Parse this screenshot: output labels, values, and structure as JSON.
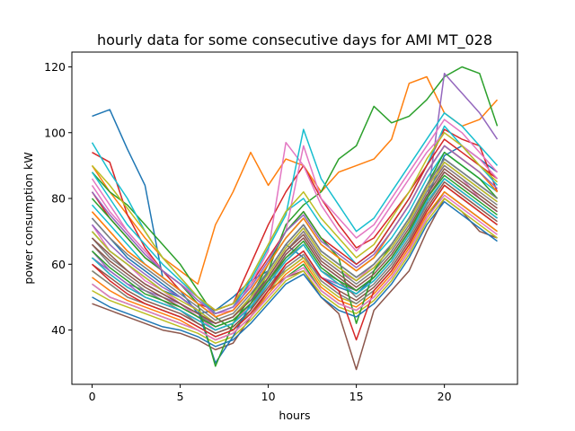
{
  "chart_data": {
    "type": "line",
    "title": "hourly data for some consecutive days for AMI MT_028",
    "xlabel": "hours",
    "ylabel": "power consumption kW",
    "xlim": [
      -1.15,
      24.15
    ],
    "ylim": [
      23.5,
      124.5
    ],
    "xticks": [
      0,
      5,
      10,
      15,
      20
    ],
    "yticks": [
      40,
      60,
      80,
      100,
      120
    ],
    "grid": false,
    "legend": "none",
    "x": [
      0,
      1,
      2,
      3,
      4,
      5,
      6,
      7,
      8,
      9,
      10,
      11,
      12,
      13,
      14,
      15,
      16,
      17,
      18,
      19,
      20,
      21,
      22,
      23
    ],
    "colors": [
      "#1f77b4",
      "#ff7f0e",
      "#2ca02c",
      "#d62728",
      "#9467bd",
      "#8c564b",
      "#e377c2",
      "#7f7f7f",
      "#bcbd22",
      "#17becf"
    ],
    "series": [
      {
        "values": [
          105,
          107,
          95,
          84,
          56,
          52,
          45,
          46,
          50,
          55,
          58,
          66,
          62,
          56,
          53,
          51,
          56,
          62,
          70,
          80,
          93,
          96,
          92,
          88
        ]
      },
      {
        "values": [
          90,
          82,
          75,
          68,
          62,
          58,
          54,
          72,
          82,
          94,
          84,
          92,
          90,
          82,
          88,
          90,
          92,
          98,
          115,
          117,
          106,
          102,
          104,
          110
        ]
      },
      {
        "values": [
          88,
          82,
          78,
          72,
          66,
          60,
          52,
          44,
          40,
          46,
          58,
          72,
          78,
          82,
          92,
          96,
          108,
          103,
          105,
          110,
          117,
          120,
          118,
          102
        ]
      },
      {
        "values": [
          94,
          91,
          75,
          65,
          58,
          52,
          48,
          46,
          48,
          60,
          72,
          82,
          90,
          80,
          72,
          65,
          68,
          75,
          82,
          90,
          101,
          98,
          96,
          82
        ]
      },
      {
        "values": [
          62,
          58,
          54,
          52,
          50,
          48,
          44,
          42,
          44,
          50,
          55,
          58,
          62,
          56,
          54,
          52,
          56,
          62,
          70,
          78,
          118,
          112,
          106,
          98
        ]
      },
      {
        "values": [
          48,
          46,
          44,
          42,
          40,
          39,
          37,
          34,
          36,
          44,
          52,
          56,
          58,
          50,
          45,
          28,
          46,
          52,
          58,
          70,
          80,
          76,
          70,
          68
        ]
      },
      {
        "values": [
          72,
          64,
          60,
          55,
          52,
          48,
          44,
          40,
          42,
          48,
          56,
          64,
          70,
          62,
          58,
          55,
          60,
          66,
          74,
          84,
          90,
          86,
          80,
          76
        ]
      },
      {
        "values": [
          66,
          60,
          56,
          52,
          49,
          46,
          42,
          39,
          41,
          46,
          54,
          62,
          66,
          58,
          55,
          50,
          54,
          60,
          68,
          78,
          86,
          82,
          78,
          74
        ]
      },
      {
        "values": [
          58,
          54,
          50,
          48,
          46,
          44,
          41,
          38,
          40,
          45,
          52,
          58,
          62,
          54,
          50,
          48,
          52,
          58,
          66,
          76,
          84,
          80,
          76,
          72
        ]
      },
      {
        "values": [
          97,
          88,
          80,
          70,
          62,
          56,
          50,
          46,
          48,
          56,
          66,
          76,
          80,
          72,
          66,
          60,
          64,
          72,
          80,
          90,
          102,
          96,
          90,
          84
        ]
      },
      {
        "values": [
          70,
          64,
          60,
          56,
          52,
          50,
          46,
          42,
          44,
          50,
          58,
          66,
          72,
          64,
          60,
          56,
          60,
          66,
          74,
          84,
          92,
          88,
          84,
          80
        ]
      },
      {
        "values": [
          76,
          70,
          64,
          60,
          56,
          52,
          48,
          44,
          46,
          52,
          60,
          68,
          74,
          66,
          62,
          58,
          62,
          70,
          78,
          88,
          96,
          92,
          88,
          82
        ]
      },
      {
        "values": [
          54,
          50,
          48,
          46,
          44,
          42,
          40,
          37,
          39,
          44,
          50,
          56,
          60,
          52,
          48,
          46,
          50,
          56,
          64,
          74,
          82,
          78,
          74,
          70
        ]
      },
      {
        "values": [
          82,
          74,
          68,
          62,
          58,
          54,
          50,
          46,
          48,
          54,
          62,
          70,
          76,
          68,
          64,
          60,
          64,
          72,
          80,
          90,
          98,
          94,
          90,
          86
        ]
      },
      {
        "values": [
          64,
          58,
          54,
          50,
          48,
          46,
          43,
          40,
          42,
          47,
          55,
          63,
          68,
          60,
          56,
          52,
          56,
          62,
          70,
          80,
          88,
          84,
          80,
          76
        ]
      },
      {
        "values": [
          60,
          56,
          52,
          49,
          47,
          45,
          42,
          39,
          41,
          46,
          53,
          60,
          64,
          56,
          52,
          49,
          53,
          59,
          67,
          77,
          85,
          81,
          77,
          73
        ]
      },
      {
        "values": [
          86,
          78,
          70,
          64,
          58,
          54,
          50,
          45,
          46,
          52,
          60,
          70,
          96,
          80,
          74,
          68,
          72,
          80,
          88,
          96,
          104,
          100,
          94,
          88
        ]
      },
      {
        "values": [
          68,
          62,
          58,
          54,
          51,
          48,
          45,
          41,
          43,
          48,
          56,
          64,
          70,
          62,
          58,
          54,
          58,
          64,
          72,
          82,
          90,
          86,
          82,
          78
        ]
      },
      {
        "values": [
          52,
          49,
          47,
          45,
          43,
          41,
          39,
          36,
          38,
          43,
          49,
          55,
          58,
          51,
          47,
          45,
          49,
          55,
          63,
          73,
          80,
          76,
          72,
          68
        ]
      },
      {
        "values": [
          78,
          72,
          66,
          60,
          56,
          52,
          48,
          44,
          46,
          52,
          60,
          68,
          74,
          66,
          62,
          58,
          62,
          68,
          76,
          86,
          94,
          90,
          86,
          82
        ]
      },
      {
        "values": [
          74,
          68,
          62,
          58,
          54,
          50,
          46,
          30,
          38,
          48,
          58,
          66,
          72,
          64,
          60,
          56,
          60,
          66,
          74,
          84,
          92,
          88,
          84,
          80
        ]
      },
      {
        "values": [
          56,
          52,
          49,
          47,
          45,
          43,
          40,
          37,
          39,
          44,
          51,
          57,
          61,
          53,
          49,
          47,
          51,
          57,
          65,
          75,
          82,
          78,
          74,
          70
        ]
      },
      {
        "values": [
          80,
          74,
          68,
          62,
          58,
          54,
          48,
          29,
          42,
          50,
          60,
          70,
          76,
          68,
          62,
          42,
          58,
          66,
          74,
          84,
          94,
          90,
          86,
          80
        ]
      },
      {
        "values": [
          62,
          57,
          53,
          50,
          48,
          46,
          43,
          40,
          42,
          47,
          54,
          61,
          66,
          58,
          54,
          51,
          55,
          61,
          69,
          79,
          86,
          82,
          78,
          74
        ]
      },
      {
        "values": [
          72,
          66,
          61,
          57,
          53,
          50,
          46,
          42,
          44,
          50,
          57,
          65,
          71,
          63,
          59,
          55,
          59,
          65,
          73,
          83,
          91,
          87,
          83,
          79
        ]
      },
      {
        "values": [
          66,
          61,
          57,
          53,
          50,
          47,
          44,
          41,
          43,
          48,
          55,
          63,
          68,
          60,
          56,
          52,
          56,
          62,
          70,
          80,
          88,
          84,
          80,
          76
        ]
      },
      {
        "values": [
          84,
          76,
          70,
          64,
          58,
          54,
          50,
          44,
          46,
          54,
          64,
          97,
          90,
          78,
          70,
          64,
          70,
          78,
          86,
          94,
          100,
          96,
          92,
          86
        ]
      },
      {
        "values": [
          58,
          54,
          50,
          48,
          46,
          44,
          41,
          38,
          40,
          45,
          52,
          59,
          63,
          55,
          51,
          48,
          52,
          58,
          66,
          76,
          84,
          80,
          76,
          72
        ]
      },
      {
        "values": [
          70,
          64,
          60,
          56,
          52,
          49,
          46,
          42,
          44,
          50,
          57,
          65,
          71,
          63,
          59,
          55,
          59,
          65,
          73,
          83,
          91,
          87,
          83,
          79
        ]
      },
      {
        "values": [
          88,
          80,
          72,
          66,
          60,
          55,
          50,
          45,
          47,
          55,
          65,
          75,
          101,
          86,
          78,
          70,
          74,
          82,
          90,
          98,
          106,
          102,
          96,
          90
        ]
      },
      {
        "values": [
          50,
          47,
          45,
          43,
          41,
          40,
          38,
          35,
          37,
          42,
          48,
          54,
          57,
          50,
          46,
          44,
          48,
          54,
          62,
          72,
          79,
          75,
          71,
          67
        ]
      },
      {
        "values": [
          76,
          70,
          64,
          60,
          56,
          52,
          48,
          44,
          46,
          52,
          60,
          68,
          74,
          66,
          62,
          58,
          62,
          70,
          78,
          88,
          96,
          92,
          88,
          82
        ]
      },
      {
        "values": [
          64,
          59,
          55,
          51,
          49,
          47,
          44,
          41,
          43,
          48,
          55,
          62,
          67,
          59,
          55,
          52,
          56,
          62,
          70,
          80,
          87,
          83,
          79,
          75
        ]
      },
      {
        "values": [
          60,
          55,
          51,
          48,
          46,
          44,
          41,
          38,
          40,
          45,
          52,
          60,
          64,
          56,
          52,
          37,
          52,
          58,
          66,
          76,
          84,
          80,
          76,
          72
        ]
      },
      {
        "values": [
          82,
          75,
          69,
          63,
          58,
          54,
          49,
          45,
          47,
          53,
          61,
          70,
          75,
          67,
          63,
          59,
          63,
          70,
          78,
          88,
          96,
          92,
          88,
          83
        ]
      },
      {
        "values": [
          68,
          63,
          58,
          54,
          51,
          48,
          45,
          42,
          44,
          49,
          56,
          64,
          69,
          61,
          57,
          53,
          57,
          63,
          71,
          81,
          89,
          85,
          81,
          77
        ]
      },
      {
        "values": [
          54,
          50,
          48,
          46,
          44,
          42,
          40,
          37,
          39,
          44,
          50,
          56,
          59,
          52,
          48,
          46,
          50,
          56,
          64,
          74,
          81,
          77,
          73,
          69
        ]
      },
      {
        "values": [
          74,
          68,
          63,
          59,
          55,
          51,
          47,
          43,
          45,
          51,
          58,
          66,
          72,
          64,
          60,
          56,
          60,
          66,
          74,
          84,
          92,
          88,
          84,
          80
        ]
      },
      {
        "values": [
          90,
          84,
          77,
          70,
          62,
          56,
          50,
          46,
          48,
          56,
          66,
          76,
          82,
          74,
          68,
          62,
          66,
          74,
          82,
          92,
          100,
          96,
          90,
          85
        ]
      },
      {
        "values": [
          62,
          57,
          53,
          50,
          48,
          46,
          43,
          40,
          42,
          47,
          54,
          61,
          66,
          58,
          54,
          51,
          55,
          61,
          69,
          79,
          86,
          82,
          78,
          74
        ]
      }
    ]
  }
}
